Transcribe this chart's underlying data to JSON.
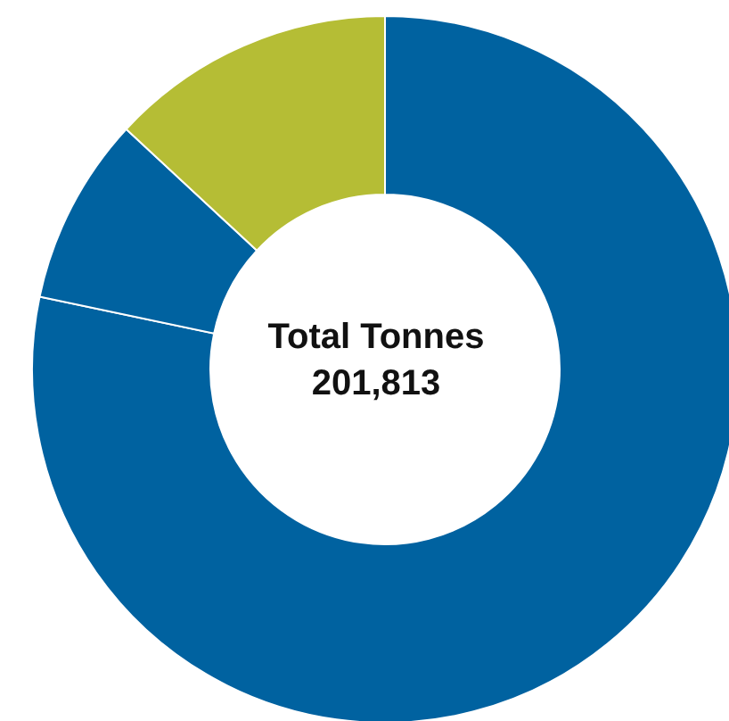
{
  "chart_data": {
    "type": "donut",
    "categories": [
      null,
      null,
      null
    ],
    "values": [
      78.3,
      8.6,
      13.1
    ],
    "colors": [
      "#0062a0",
      "#0062a0",
      "#b5bd35"
    ],
    "annotations": [
      "Total Tonnes",
      "201,813"
    ]
  }
}
